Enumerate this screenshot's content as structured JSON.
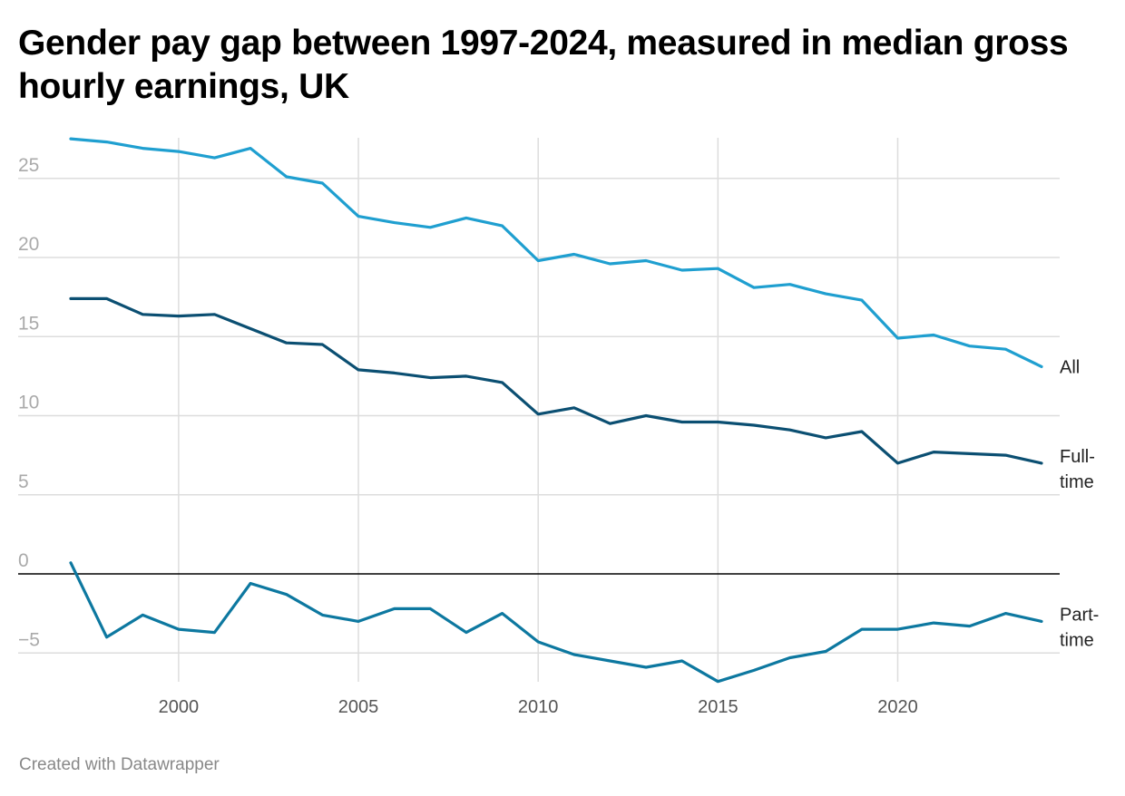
{
  "title": "Gender pay gap between 1997-2024, measured in median gross hourly earnings, UK",
  "footer": "Created with Datawrapper",
  "colors": {
    "all": "#1f9fd0",
    "full_time": "#0b4f72",
    "part_time": "#0d78a0",
    "grid": "#dddddd",
    "zero_line": "#000000"
  },
  "chart_data": {
    "type": "line",
    "title": "Gender pay gap between 1997-2024, measured in median gross hourly earnings, UK",
    "xlabel": "",
    "ylabel": "",
    "xlim": [
      1997,
      2024
    ],
    "ylim": [
      -7,
      27.5
    ],
    "grid": true,
    "legend": "line-end labels",
    "x": [
      1997,
      1998,
      1999,
      2000,
      2001,
      2002,
      2003,
      2004,
      2005,
      2006,
      2007,
      2008,
      2009,
      2010,
      2011,
      2012,
      2013,
      2014,
      2015,
      2016,
      2017,
      2018,
      2019,
      2020,
      2021,
      2022,
      2023,
      2024
    ],
    "x_ticks": [
      2000,
      2005,
      2010,
      2015,
      2020
    ],
    "y_ticks": [
      -5,
      0,
      5,
      10,
      15,
      20,
      25
    ],
    "series": [
      {
        "name": "All",
        "label_lines": [
          "All"
        ],
        "values": [
          27.5,
          27.3,
          26.9,
          26.7,
          26.3,
          26.9,
          25.1,
          24.7,
          22.6,
          22.2,
          21.9,
          22.5,
          22.0,
          19.8,
          20.2,
          19.6,
          19.8,
          19.2,
          19.3,
          18.1,
          18.3,
          17.7,
          17.3,
          14.9,
          15.1,
          14.4,
          14.2,
          13.1
        ]
      },
      {
        "name": "Full-time",
        "label_lines": [
          "Full-",
          "time"
        ],
        "values": [
          17.4,
          17.4,
          16.4,
          16.3,
          16.4,
          15.5,
          14.6,
          14.5,
          12.9,
          12.7,
          12.4,
          12.5,
          12.1,
          10.1,
          10.5,
          9.5,
          10.0,
          9.6,
          9.6,
          9.4,
          9.1,
          8.6,
          9.0,
          7.0,
          7.7,
          7.6,
          7.5,
          7.0
        ]
      },
      {
        "name": "Part-time",
        "label_lines": [
          "Part-",
          "time"
        ],
        "values": [
          0.7,
          -4.0,
          -2.6,
          -3.5,
          -3.7,
          -0.6,
          -1.3,
          -2.6,
          -3.0,
          -2.2,
          -2.2,
          -3.7,
          -2.5,
          -4.3,
          -5.1,
          -5.5,
          -5.9,
          -5.5,
          -6.8,
          -6.1,
          -5.3,
          -4.9,
          -3.5,
          -3.5,
          -3.1,
          -3.3,
          -2.5,
          -3.0
        ]
      }
    ]
  }
}
